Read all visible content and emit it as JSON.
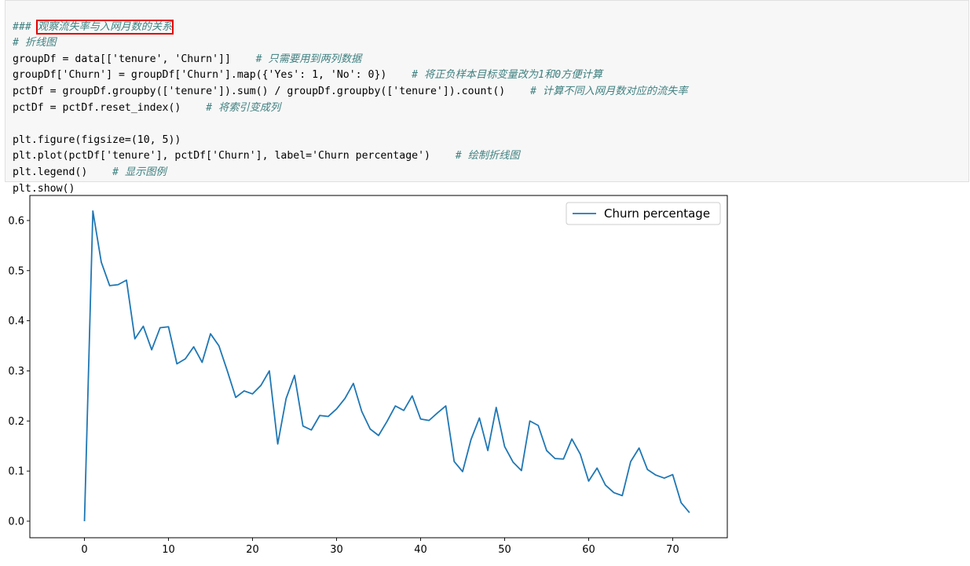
{
  "code_cell": {
    "lines": [
      {
        "prefix": "### ",
        "highlight": "观察流失率与入网月数的关系"
      },
      {
        "comment": "# 折线图"
      },
      {
        "code": "groupDf = data[['tenure', 'Churn']]",
        "comment": "# 只需要用到两列数据"
      },
      {
        "code": "groupDf['Churn'] = groupDf['Churn'].map({'Yes': 1, 'No': 0})",
        "comment": "# 将正负样本目标变量改为1和0方便计算"
      },
      {
        "code": "pctDf = groupDf.groupby(['tenure']).sum() / groupDf.groupby(['tenure']).count()",
        "comment": "# 计算不同入网月数对应的流失率"
      },
      {
        "code": "pctDf = pctDf.reset_index()",
        "comment": "# 将索引变成列"
      },
      {
        "code": ""
      },
      {
        "code": "plt.figure(figsize=(10, 5))"
      },
      {
        "code": "plt.plot(pctDf['tenure'], pctDf['Churn'], label='Churn percentage')",
        "comment": "# 绘制折线图"
      },
      {
        "code": "plt.legend()",
        "comment": "# 显示图例"
      },
      {
        "code": "plt.show()"
      }
    ]
  },
  "chart_data": {
    "type": "line",
    "title": "",
    "xlabel": "",
    "ylabel": "",
    "xlim": [
      -6.5,
      76.5
    ],
    "ylim": [
      -0.033,
      0.65
    ],
    "x_ticks": [
      0,
      10,
      20,
      30,
      40,
      50,
      60,
      70
    ],
    "y_ticks": [
      0.0,
      0.1,
      0.2,
      0.3,
      0.4,
      0.5,
      0.6
    ],
    "y_tick_labels": [
      "0.0",
      "0.1",
      "0.2",
      "0.3",
      "0.4",
      "0.5",
      "0.6"
    ],
    "grid": false,
    "legend": "upper right",
    "line_color": "#1f77b4",
    "series": [
      {
        "name": "Churn percentage",
        "x": [
          0,
          1,
          2,
          3,
          4,
          5,
          6,
          7,
          8,
          9,
          10,
          11,
          12,
          13,
          14,
          15,
          16,
          17,
          18,
          19,
          20,
          21,
          22,
          23,
          24,
          25,
          26,
          27,
          28,
          29,
          30,
          31,
          32,
          33,
          34,
          35,
          36,
          37,
          38,
          39,
          40,
          41,
          42,
          43,
          44,
          45,
          46,
          47,
          48,
          49,
          50,
          51,
          52,
          53,
          54,
          55,
          56,
          57,
          58,
          59,
          60,
          61,
          62,
          63,
          64,
          65,
          66,
          67,
          68,
          69,
          70,
          71,
          72
        ],
        "values": [
          0.0,
          0.619,
          0.517,
          0.47,
          0.472,
          0.481,
          0.364,
          0.389,
          0.342,
          0.386,
          0.388,
          0.314,
          0.324,
          0.348,
          0.317,
          0.374,
          0.35,
          0.3,
          0.247,
          0.26,
          0.254,
          0.271,
          0.3,
          0.154,
          0.245,
          0.291,
          0.19,
          0.182,
          0.211,
          0.209,
          0.224,
          0.245,
          0.275,
          0.219,
          0.184,
          0.171,
          0.199,
          0.23,
          0.221,
          0.25,
          0.204,
          0.201,
          0.216,
          0.23,
          0.119,
          0.099,
          0.163,
          0.206,
          0.141,
          0.227,
          0.149,
          0.118,
          0.101,
          0.2,
          0.191,
          0.141,
          0.125,
          0.124,
          0.164,
          0.134,
          0.08,
          0.106,
          0.072,
          0.057,
          0.051,
          0.119,
          0.146,
          0.103,
          0.092,
          0.086,
          0.093,
          0.037,
          0.017
        ]
      }
    ]
  }
}
